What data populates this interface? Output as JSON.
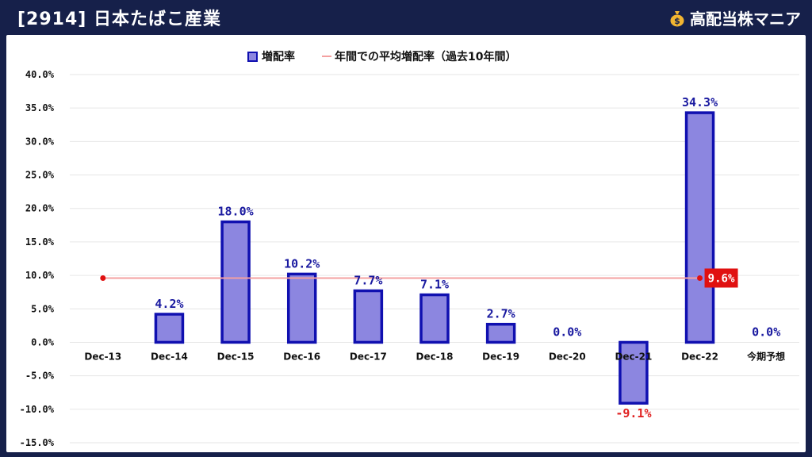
{
  "header": {
    "title": "[2914] 日本たばこ産業",
    "brand": "高配当株マニア",
    "brand_icon": "money-bag-icon"
  },
  "colors": {
    "background": "#16204a",
    "bar_fill": "#8c86e0",
    "bar_border": "#1010b0",
    "label_positive": "#1a1aa0",
    "label_negative": "#e02020",
    "avg_line": "#f4a0a0",
    "avg_marker": "#e01010",
    "avg_badge": "#e01010"
  },
  "chart_data": {
    "type": "bar",
    "categories": [
      "Dec-13",
      "Dec-14",
      "Dec-15",
      "Dec-16",
      "Dec-17",
      "Dec-18",
      "Dec-19",
      "Dec-20",
      "Dec-21",
      "Dec-22",
      "今期予想"
    ],
    "series": [
      {
        "name": "増配率",
        "values": [
          null,
          4.2,
          18.0,
          10.2,
          7.7,
          7.1,
          2.7,
          0.0,
          -9.1,
          34.3,
          0.0
        ]
      }
    ],
    "data_labels": [
      "",
      "4.2%",
      "18.0%",
      "10.2%",
      "7.7%",
      "7.1%",
      "2.7%",
      "0.0%",
      "-9.1%",
      "34.3%",
      "0.0%"
    ],
    "average": {
      "name": "年間での平均増配率（過去10年間）",
      "value": 9.6,
      "label": "9.6%"
    },
    "ylim": [
      -15,
      40
    ],
    "yticks": [
      40,
      35,
      30,
      25,
      20,
      15,
      10,
      5,
      0,
      -5,
      -10,
      -15
    ],
    "ytick_labels": [
      "40.0%",
      "35.0%",
      "30.0%",
      "25.0%",
      "20.0%",
      "15.0%",
      "10.0%",
      "5.0%",
      "0.0%",
      "-5.0%",
      "-10.0%",
      "-15.0%"
    ],
    "grid": true,
    "legend": "top-center"
  }
}
